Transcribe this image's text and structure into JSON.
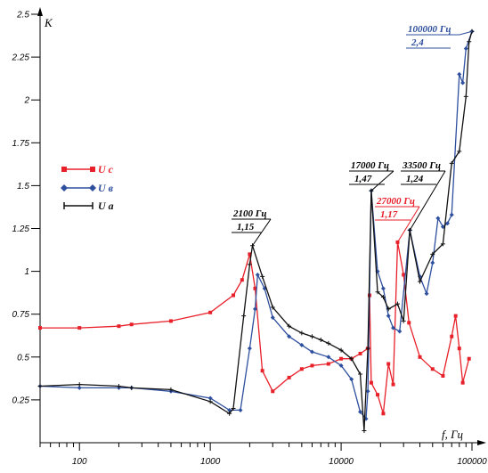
{
  "chart_data": {
    "type": "line",
    "xscale": "log",
    "xlim": [
      50,
      100000
    ],
    "ylim": [
      0,
      2.5
    ],
    "xlabel": "f, Гц",
    "ylabel": "K",
    "x_ticks": [
      {
        "value": 100,
        "label": "100"
      },
      {
        "value": 1000,
        "label": "1000"
      },
      {
        "value": 10000,
        "label": "10000"
      },
      {
        "value": 100000,
        "label": "100000"
      }
    ],
    "y_ticks": [
      {
        "value": 0.25,
        "label": "0.25"
      },
      {
        "value": 0.5,
        "label": "0.5"
      },
      {
        "value": 0.75,
        "label": "0.75"
      },
      {
        "value": 1,
        "label": "1"
      },
      {
        "value": 1.25,
        "label": "1.25"
      },
      {
        "value": 1.5,
        "label": "1.5"
      },
      {
        "value": 1.75,
        "label": "1.75"
      },
      {
        "value": 2,
        "label": "2"
      },
      {
        "value": 2.25,
        "label": "2.25"
      },
      {
        "value": 2.5,
        "label": "2.5"
      }
    ],
    "legend_position": "left",
    "series": [
      {
        "name": "U с",
        "color": "#e8202a",
        "marker": "square",
        "points": [
          [
            50,
            0.67
          ],
          [
            100,
            0.67
          ],
          [
            200,
            0.68
          ],
          [
            250,
            0.69
          ],
          [
            500,
            0.71
          ],
          [
            1000,
            0.76
          ],
          [
            1500,
            0.86
          ],
          [
            1750,
            0.95
          ],
          [
            2000,
            1.1
          ],
          [
            2200,
            0.9
          ],
          [
            2500,
            0.42
          ],
          [
            3000,
            0.3
          ],
          [
            4000,
            0.38
          ],
          [
            5000,
            0.43
          ],
          [
            6000,
            0.45
          ],
          [
            8000,
            0.46
          ],
          [
            10000,
            0.49
          ],
          [
            12000,
            0.49
          ],
          [
            14000,
            0.52
          ],
          [
            16000,
            0.55
          ],
          [
            16500,
            0.86
          ],
          [
            17000,
            0.35
          ],
          [
            19000,
            0.28
          ],
          [
            21000,
            0.17
          ],
          [
            23000,
            0.46
          ],
          [
            25000,
            0.34
          ],
          [
            27000,
            1.17
          ],
          [
            30000,
            0.98
          ],
          [
            33000,
            0.7
          ],
          [
            40000,
            0.5
          ],
          [
            50000,
            0.43
          ],
          [
            60000,
            0.39
          ],
          [
            70000,
            0.62
          ],
          [
            75000,
            0.74
          ],
          [
            80000,
            0.55
          ],
          [
            85000,
            0.35
          ],
          [
            95000,
            0.49
          ]
        ]
      },
      {
        "name": "U в",
        "color": "#2e4f9e",
        "marker": "diamond",
        "points": [
          [
            50,
            0.33
          ],
          [
            100,
            0.32
          ],
          [
            200,
            0.32
          ],
          [
            250,
            0.32
          ],
          [
            500,
            0.3
          ],
          [
            1000,
            0.26
          ],
          [
            1400,
            0.19
          ],
          [
            1700,
            0.19
          ],
          [
            2000,
            0.55
          ],
          [
            2200,
            0.78
          ],
          [
            2300,
            0.98
          ],
          [
            2600,
            0.9
          ],
          [
            3000,
            0.73
          ],
          [
            4000,
            0.62
          ],
          [
            5000,
            0.57
          ],
          [
            6000,
            0.53
          ],
          [
            8000,
            0.5
          ],
          [
            10000,
            0.45
          ],
          [
            12000,
            0.37
          ],
          [
            14000,
            0.18
          ],
          [
            15500,
            0.14
          ],
          [
            16000,
            0.3
          ],
          [
            17000,
            1.47
          ],
          [
            19000,
            1.0
          ],
          [
            21000,
            0.9
          ],
          [
            23000,
            0.74
          ],
          [
            25000,
            0.67
          ],
          [
            28000,
            0.65
          ],
          [
            33500,
            1.24
          ],
          [
            40000,
            0.97
          ],
          [
            45000,
            0.87
          ],
          [
            50000,
            1.05
          ],
          [
            55000,
            1.31
          ],
          [
            60000,
            1.26
          ],
          [
            65000,
            1.28
          ],
          [
            70000,
            1.33
          ],
          [
            80000,
            2.15
          ],
          [
            85000,
            2.1
          ],
          [
            90000,
            2.3
          ],
          [
            100000,
            2.4
          ]
        ]
      },
      {
        "name": "U а",
        "color": "#111111",
        "marker": "plus",
        "points": [
          [
            50,
            0.33
          ],
          [
            100,
            0.34
          ],
          [
            200,
            0.33
          ],
          [
            250,
            0.32
          ],
          [
            500,
            0.31
          ],
          [
            1000,
            0.24
          ],
          [
            1400,
            0.17
          ],
          [
            1500,
            0.2
          ],
          [
            1800,
            0.74
          ],
          [
            2000,
            1.04
          ],
          [
            2100,
            1.15
          ],
          [
            2500,
            0.97
          ],
          [
            3000,
            0.79
          ],
          [
            4000,
            0.68
          ],
          [
            5000,
            0.64
          ],
          [
            6000,
            0.62
          ],
          [
            7000,
            0.6
          ],
          [
            8000,
            0.58
          ],
          [
            10000,
            0.54
          ],
          [
            12000,
            0.49
          ],
          [
            14000,
            0.4
          ],
          [
            15000,
            0.07
          ],
          [
            16000,
            0.55
          ],
          [
            17000,
            1.47
          ],
          [
            19000,
            0.88
          ],
          [
            21000,
            0.85
          ],
          [
            23000,
            0.78
          ],
          [
            27000,
            0.81
          ],
          [
            30000,
            0.71
          ],
          [
            33500,
            1.24
          ],
          [
            40000,
            0.94
          ],
          [
            50000,
            1.1
          ],
          [
            60000,
            1.16
          ],
          [
            70000,
            1.63
          ],
          [
            80000,
            1.7
          ],
          [
            90000,
            2.02
          ],
          [
            95000,
            2.34
          ],
          [
            100000,
            2.4
          ]
        ]
      }
    ],
    "annotations": [
      {
        "line1": "2100 Гц",
        "line2": "1,15",
        "x": 2100,
        "y": 1.15,
        "color": "#000000"
      },
      {
        "line1": "17000 Гц",
        "line2": "1,47",
        "x": 17000,
        "y": 1.47,
        "color": "#000000"
      },
      {
        "line1": "27000 Гц",
        "line2": "1,17",
        "x": 27000,
        "y": 1.17,
        "color": "#e8202a"
      },
      {
        "line1": "33500 Гц",
        "line2": "1,24",
        "x": 33500,
        "y": 1.24,
        "color": "#000000"
      },
      {
        "line1": "100000 Гц",
        "line2": "2,4",
        "x": 100000,
        "y": 2.4,
        "color": "#2e4f9e"
      }
    ]
  }
}
